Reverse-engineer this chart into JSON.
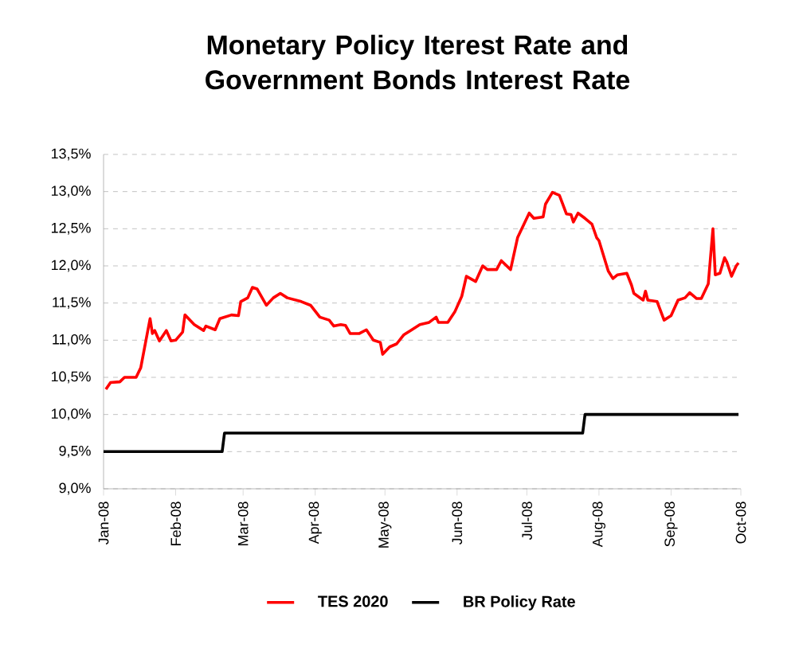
{
  "chart_data": {
    "type": "line",
    "title": "Monetary Policy Iterest Rate and Government Bonds Interest Rate",
    "xlim": [
      "2008-01-01",
      "2008-10-01"
    ],
    "xticks": [
      {
        "value": "2008-01-01",
        "label": "Jan-08"
      },
      {
        "value": "2008-02-01",
        "label": "Feb-08"
      },
      {
        "value": "2008-03-01",
        "label": "Mar-08"
      },
      {
        "value": "2008-04-01",
        "label": "Apr-08"
      },
      {
        "value": "2008-05-01",
        "label": "May-08"
      },
      {
        "value": "2008-06-01",
        "label": "Jun-08"
      },
      {
        "value": "2008-07-01",
        "label": "Jul-08"
      },
      {
        "value": "2008-08-01",
        "label": "Aug-08"
      },
      {
        "value": "2008-09-01",
        "label": "Sep-08"
      },
      {
        "value": "2008-10-01",
        "label": "Oct-08"
      }
    ],
    "ylim": [
      9.0,
      13.5
    ],
    "yticks": [
      {
        "value": 9.0,
        "label": "9,0%"
      },
      {
        "value": 9.5,
        "label": "9,5%"
      },
      {
        "value": 10.0,
        "label": "10,0%"
      },
      {
        "value": 10.5,
        "label": "10,5%"
      },
      {
        "value": 11.0,
        "label": "11,0%"
      },
      {
        "value": 11.5,
        "label": "11,5%"
      },
      {
        "value": 12.0,
        "label": "12,0%"
      },
      {
        "value": 12.5,
        "label": "12,5%"
      },
      {
        "value": 13.0,
        "label": "13,0%"
      },
      {
        "value": 13.5,
        "label": "13,5%"
      }
    ],
    "grid": "y",
    "legend": "bottom",
    "marker": "none",
    "line_style": "solid",
    "series": [
      {
        "name": "TES 2020",
        "color": "#ff0000",
        "x": [
          "2008-01-02",
          "2008-01-04",
          "2008-01-08",
          "2008-01-10",
          "2008-01-15",
          "2008-01-17",
          "2008-01-21",
          "2008-01-22",
          "2008-01-23",
          "2008-01-25",
          "2008-01-28",
          "2008-01-30",
          "2008-02-01",
          "2008-02-04",
          "2008-02-05",
          "2008-02-09",
          "2008-02-13",
          "2008-02-14",
          "2008-02-18",
          "2008-02-20",
          "2008-02-25",
          "2008-02-28",
          "2008-02-29",
          "2008-03-03",
          "2008-03-05",
          "2008-03-07",
          "2008-03-11",
          "2008-03-14",
          "2008-03-17",
          "2008-03-20",
          "2008-03-26",
          "2008-03-30",
          "2008-04-03",
          "2008-04-07",
          "2008-04-09",
          "2008-04-12",
          "2008-04-14",
          "2008-04-16",
          "2008-04-20",
          "2008-04-23",
          "2008-04-26",
          "2008-04-29",
          "2008-04-30",
          "2008-05-03",
          "2008-05-06",
          "2008-05-09",
          "2008-05-12",
          "2008-05-16",
          "2008-05-20",
          "2008-05-23",
          "2008-05-24",
          "2008-05-28",
          "2008-05-31",
          "2008-06-03",
          "2008-06-05",
          "2008-06-09",
          "2008-06-12",
          "2008-06-14",
          "2008-06-18",
          "2008-06-20",
          "2008-06-24",
          "2008-06-27",
          "2008-07-02",
          "2008-07-04",
          "2008-07-08",
          "2008-07-09",
          "2008-07-12",
          "2008-07-15",
          "2008-07-18",
          "2008-07-20",
          "2008-07-21",
          "2008-07-23",
          "2008-07-26",
          "2008-07-29",
          "2008-07-31",
          "2008-08-01",
          "2008-08-05",
          "2008-08-07",
          "2008-08-09",
          "2008-08-13",
          "2008-08-15",
          "2008-08-16",
          "2008-08-20",
          "2008-08-21",
          "2008-08-22",
          "2008-08-26",
          "2008-08-29",
          "2008-09-01",
          "2008-09-04",
          "2008-09-07",
          "2008-09-09",
          "2008-09-12",
          "2008-09-14",
          "2008-09-17",
          "2008-09-19",
          "2008-09-20",
          "2008-09-22",
          "2008-09-24",
          "2008-09-25",
          "2008-09-27",
          "2008-09-29",
          "2008-09-30"
        ],
        "values": [
          10.34,
          10.43,
          10.44,
          10.5,
          10.5,
          10.63,
          11.29,
          11.09,
          11.13,
          10.99,
          11.13,
          10.99,
          11.0,
          11.11,
          11.34,
          11.21,
          11.13,
          11.19,
          11.14,
          11.29,
          11.34,
          11.33,
          11.52,
          11.57,
          11.71,
          11.69,
          11.47,
          11.57,
          11.63,
          11.57,
          11.52,
          11.47,
          11.31,
          11.27,
          11.19,
          11.21,
          11.2,
          11.09,
          11.09,
          11.14,
          11.0,
          10.97,
          10.81,
          10.91,
          10.95,
          11.07,
          11.13,
          11.21,
          11.24,
          11.31,
          11.24,
          11.24,
          11.38,
          11.59,
          11.86,
          11.79,
          12.0,
          11.95,
          11.95,
          12.07,
          11.95,
          12.38,
          12.71,
          12.64,
          12.66,
          12.83,
          12.99,
          12.95,
          12.7,
          12.69,
          12.59,
          12.71,
          12.64,
          12.56,
          12.38,
          12.34,
          11.93,
          11.83,
          11.88,
          11.9,
          11.74,
          11.63,
          11.54,
          11.66,
          11.54,
          11.52,
          11.27,
          11.33,
          11.54,
          11.57,
          11.64,
          11.56,
          11.56,
          11.76,
          12.5,
          11.88,
          11.9,
          12.11,
          12.05,
          11.86,
          12.0,
          12.04
        ]
      },
      {
        "name": "BR Policy Rate",
        "color": "#000000",
        "x": [
          "2008-01-01",
          "2008-02-21",
          "2008-02-22",
          "2008-07-25",
          "2008-07-26",
          "2008-09-30"
        ],
        "values": [
          9.5,
          9.5,
          9.75,
          9.75,
          10.0,
          10.0
        ]
      }
    ]
  }
}
